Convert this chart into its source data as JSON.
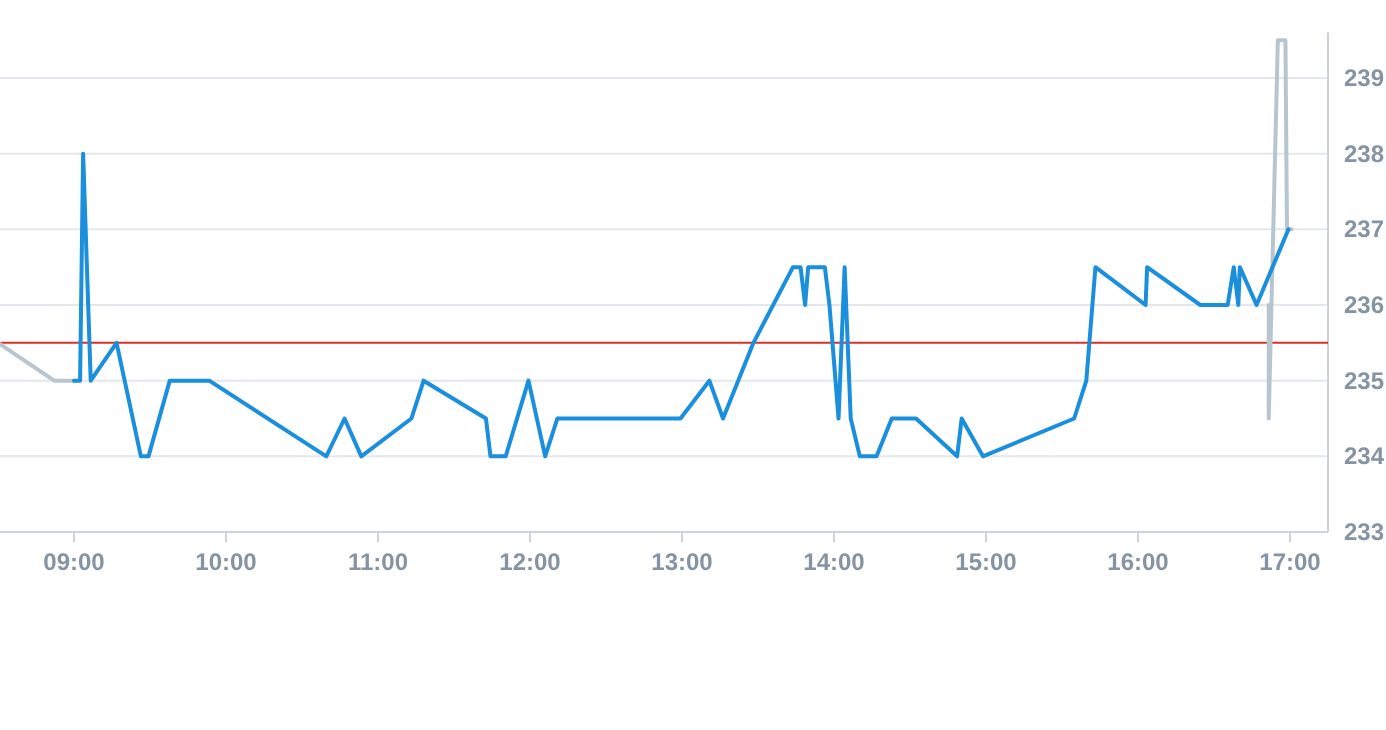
{
  "chart_data": {
    "type": "line",
    "xlim": [
      8.5,
      17.25
    ],
    "ylim": [
      233,
      239.6
    ],
    "xticks": [
      {
        "value": 9,
        "label": "09:00"
      },
      {
        "value": 10,
        "label": "10:00"
      },
      {
        "value": 11,
        "label": "11:00"
      },
      {
        "value": 12,
        "label": "12:00"
      },
      {
        "value": 13,
        "label": "13:00"
      },
      {
        "value": 14,
        "label": "14:00"
      },
      {
        "value": 15,
        "label": "15:00"
      },
      {
        "value": 16,
        "label": "16:00"
      },
      {
        "value": 17,
        "label": "17:00"
      }
    ],
    "yticks": [
      233,
      234,
      235,
      236,
      237,
      238,
      239
    ],
    "grid": "y",
    "marker": "none",
    "line_style": "solid",
    "ref_lines": [
      {
        "axis": "y",
        "value": 235.5,
        "color": "#d9302a"
      }
    ],
    "series": [
      {
        "color": "#b8c5cf",
        "x": [
          8.5,
          8.87,
          9.0,
          16.5,
          16.86,
          16.86,
          16.92,
          16.97,
          16.98,
          17.01
        ],
        "values": [
          235.5,
          235,
          235,
          null,
          236,
          234.5,
          239.5,
          239.5,
          237,
          237
        ]
      },
      {
        "color": "#1a8fdd",
        "x": [
          9.0,
          9.04,
          9.06,
          9.11,
          9.28,
          9.44,
          9.49,
          9.63,
          9.89,
          10.66,
          10.78,
          10.89,
          11.22,
          11.3,
          11.71,
          11.74,
          11.84,
          11.99,
          12.1,
          12.18,
          12.99,
          13.18,
          13.27,
          13.47,
          13.73,
          13.78,
          13.81,
          13.83,
          13.94,
          13.97,
          14.03,
          14.07,
          14.11,
          14.17,
          14.28,
          14.38,
          14.54,
          14.81,
          14.84,
          14.98,
          15.58,
          15.66,
          15.72,
          16.05,
          16.06,
          16.41,
          16.59,
          16.63,
          16.66,
          16.67,
          16.78,
          16.99
        ],
        "values": [
          235,
          235,
          238,
          235,
          235.5,
          234,
          234,
          235,
          235,
          234,
          234.5,
          234,
          234.5,
          235,
          234.5,
          234,
          234,
          235,
          234,
          234.5,
          234.5,
          235,
          234.5,
          235.5,
          236.5,
          236.5,
          236,
          236.5,
          236.5,
          236,
          234.5,
          236.5,
          234.5,
          234,
          234,
          234.5,
          234.5,
          234,
          234.5,
          234,
          234.5,
          235,
          236.5,
          236,
          236.5,
          236,
          236,
          236.5,
          236,
          236.5,
          236,
          237
        ]
      }
    ]
  }
}
